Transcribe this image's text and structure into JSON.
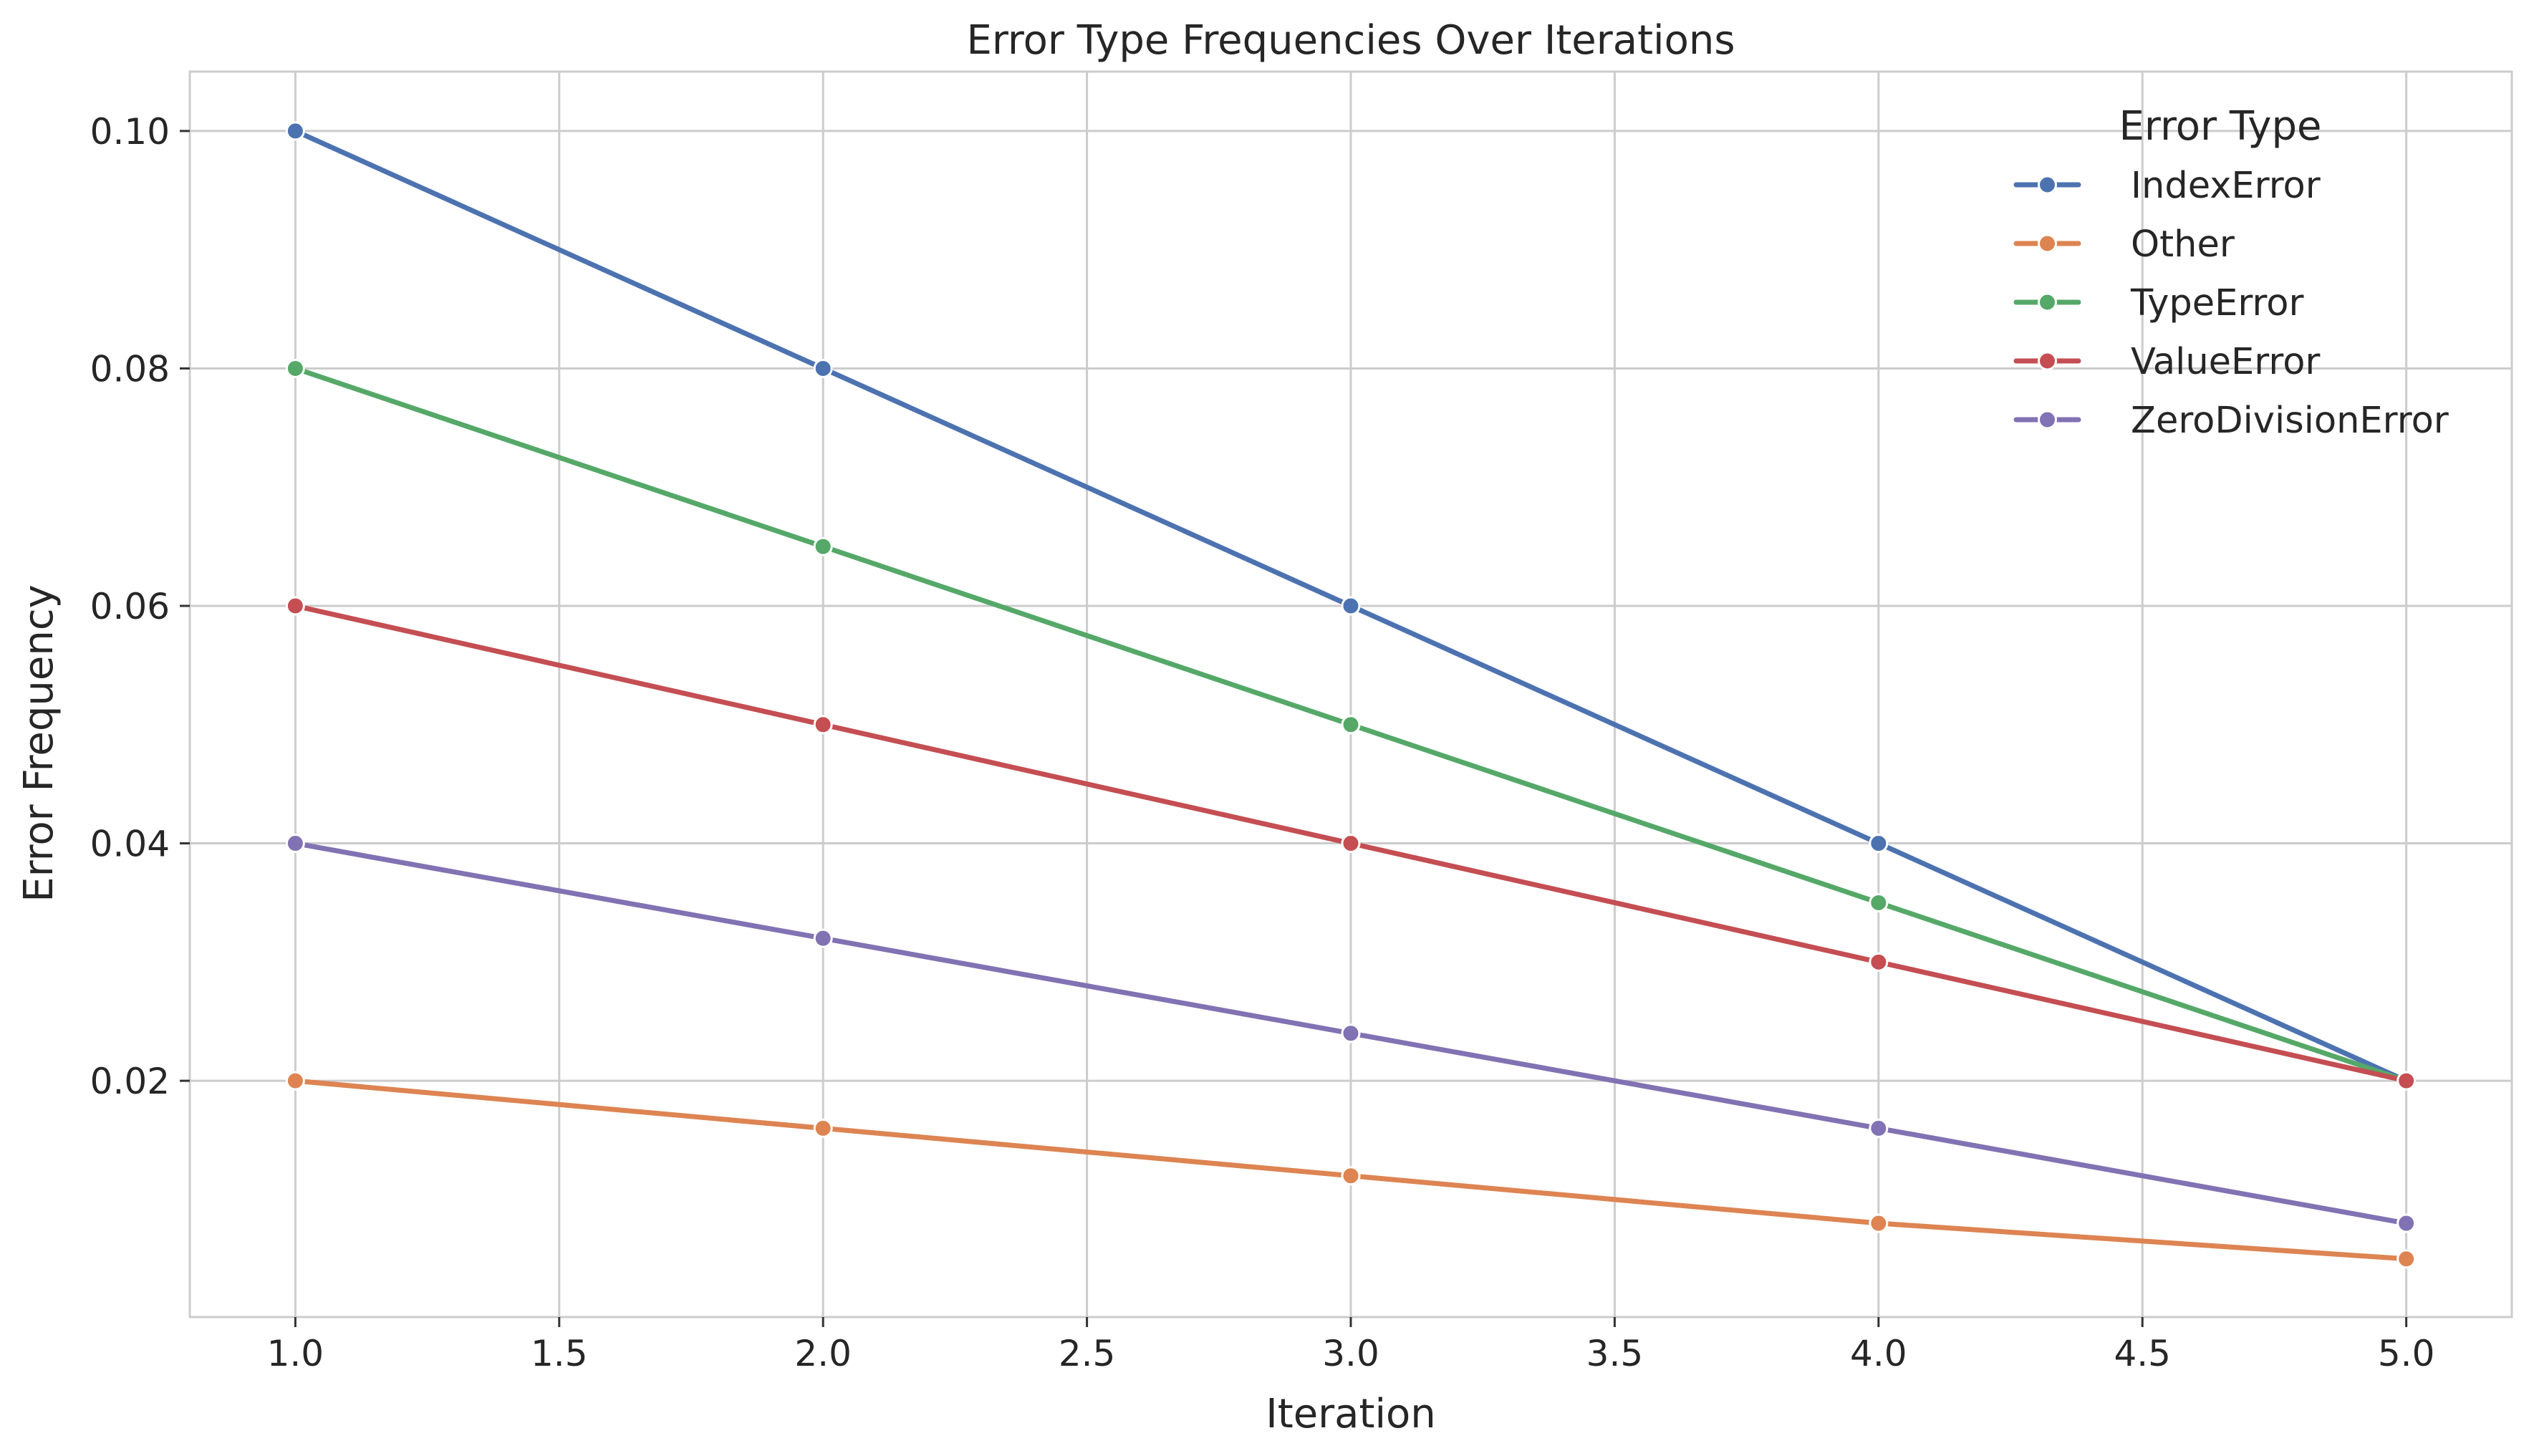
{
  "chart_data": {
    "type": "line",
    "title": "Error Type Frequencies Over Iterations",
    "xlabel": "Iteration",
    "ylabel": "Error Frequency",
    "x": [
      1,
      2,
      3,
      4,
      5
    ],
    "xlim": [
      0.8,
      5.2
    ],
    "ylim": [
      0.0001,
      0.105
    ],
    "xticks": [
      1.0,
      1.5,
      2.0,
      2.5,
      3.0,
      3.5,
      4.0,
      4.5,
      5.0
    ],
    "xtick_labels": [
      "1.0",
      "1.5",
      "2.0",
      "2.5",
      "3.0",
      "3.5",
      "4.0",
      "4.5",
      "5.0"
    ],
    "yticks": [
      0.02,
      0.04,
      0.06,
      0.08,
      0.1
    ],
    "ytick_labels": [
      "0.02",
      "0.04",
      "0.06",
      "0.08",
      "0.10"
    ],
    "grid": true,
    "legend": {
      "title": "Error Type",
      "placement": "top-right"
    },
    "series": [
      {
        "name": "IndexError",
        "color": "#4c72b0",
        "values": [
          0.1,
          0.08,
          0.06,
          0.04,
          0.02
        ]
      },
      {
        "name": "Other",
        "color": "#dd8452",
        "values": [
          0.02,
          0.016,
          0.012,
          0.008,
          0.005
        ]
      },
      {
        "name": "TypeError",
        "color": "#55a868",
        "values": [
          0.08,
          0.065,
          0.05,
          0.035,
          0.02
        ]
      },
      {
        "name": "ValueError",
        "color": "#c44e52",
        "values": [
          0.06,
          0.05,
          0.04,
          0.03,
          0.02
        ]
      },
      {
        "name": "ZeroDivisionError",
        "color": "#8172b3",
        "values": [
          0.04,
          0.032,
          0.024,
          0.016,
          0.008
        ]
      }
    ]
  }
}
